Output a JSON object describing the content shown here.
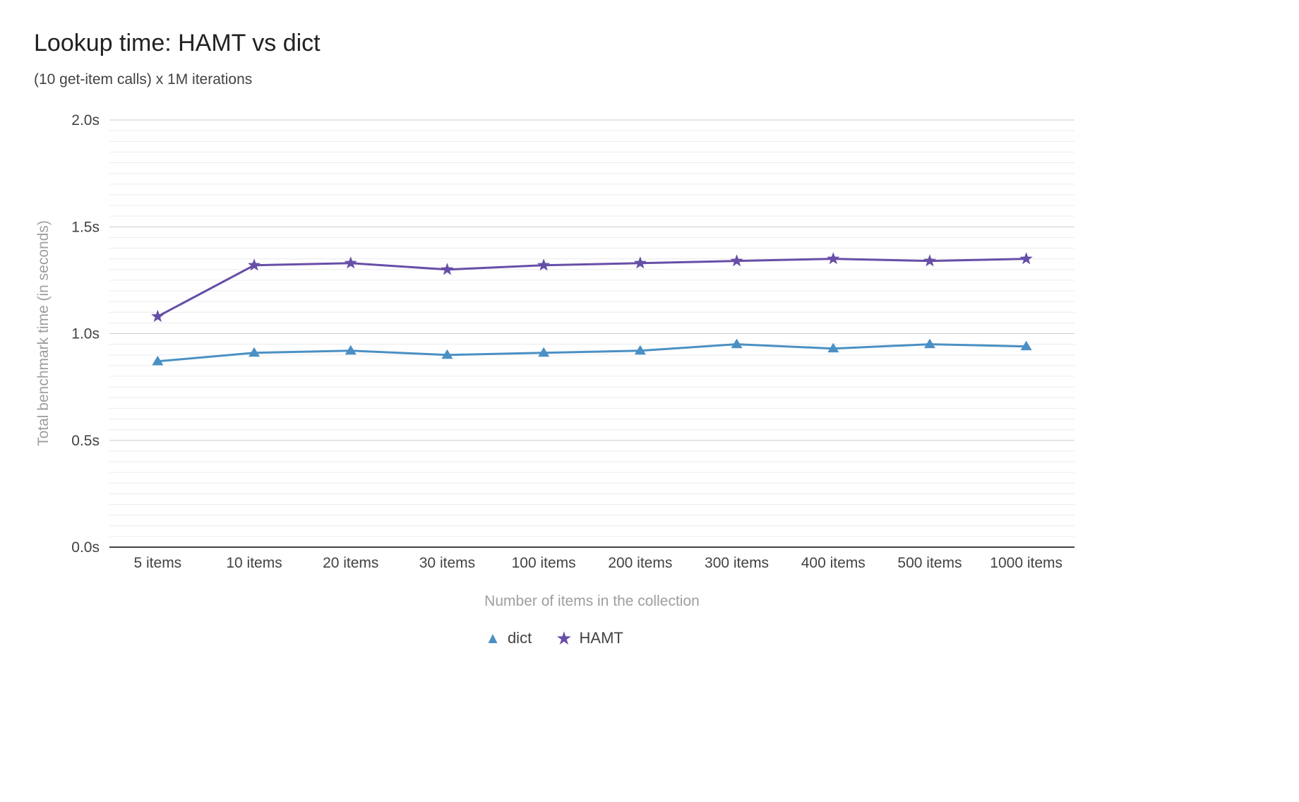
{
  "title": "Lookup time: HAMT vs dict",
  "subtitle": "(10 get-item calls) x 1M iterations",
  "chart_data": {
    "type": "line",
    "categories": [
      "5 items",
      "10 items",
      "20 items",
      "30 items",
      "100 items",
      "200 items",
      "300 items",
      "400 items",
      "500 items",
      "1000 items"
    ],
    "series": [
      {
        "name": "dict",
        "marker": "triangle",
        "color": "#4a90c4",
        "values": [
          0.87,
          0.91,
          0.92,
          0.9,
          0.91,
          0.92,
          0.95,
          0.93,
          0.95,
          0.94
        ]
      },
      {
        "name": "HAMT",
        "marker": "star",
        "color": "#674ea7",
        "values": [
          1.08,
          1.32,
          1.33,
          1.3,
          1.32,
          1.33,
          1.34,
          1.35,
          1.34,
          1.35
        ]
      }
    ],
    "title": "Lookup time: HAMT vs dict",
    "subtitle": "(10 get-item calls) x 1M iterations",
    "xlabel": "Number of items in the collection",
    "ylabel": "Total benchmark time (in seconds)",
    "ylim": [
      0,
      2
    ],
    "ytick_values": [
      0,
      0.5,
      1.0,
      1.5,
      2.0
    ],
    "ytick_labels": [
      "0.0s",
      "0.5s",
      "1.0s",
      "1.5s",
      "2.0s"
    ],
    "minor_grid_step": 0.05,
    "grid": true,
    "legend_position": "bottom"
  },
  "colors": {
    "title_text": "#212121",
    "subtitle_text": "#424242",
    "tick_text": "#424242",
    "axis_title_text": "#9e9e9e",
    "major_grid": "#cccccc",
    "minor_grid": "#ececec",
    "axis_line": "#424242",
    "dict_series": "#4a90c4",
    "hamt_series": "#674ea7"
  }
}
